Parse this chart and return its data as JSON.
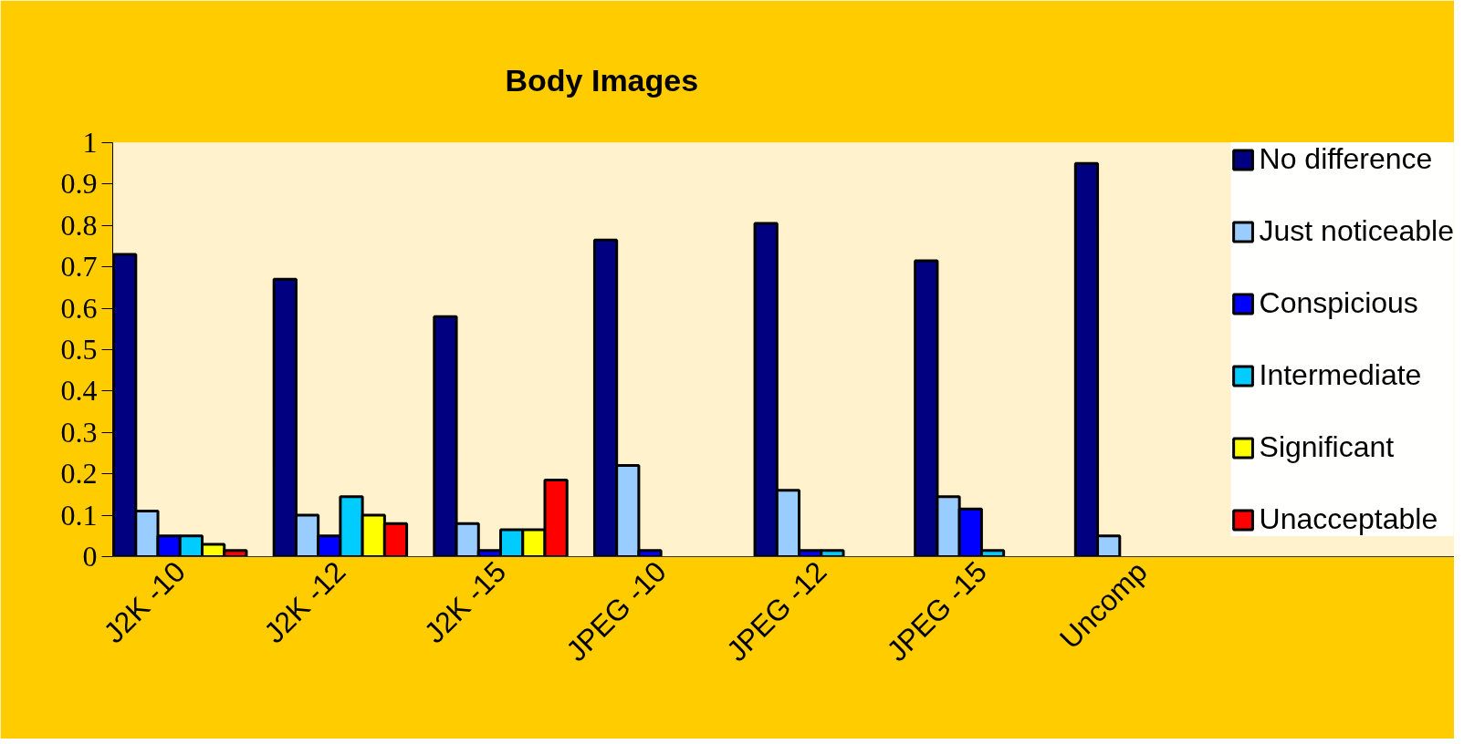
{
  "chart_data": {
    "type": "bar",
    "title": "Body Images",
    "categories": [
      "J2K -10",
      "J2K -12",
      "J2K -15",
      "JPEG -10",
      "JPEG -12",
      "JPEG -15",
      "Uncomp"
    ],
    "series": [
      {
        "name": "No difference",
        "color": "#000080",
        "values": [
          0.73,
          0.67,
          0.58,
          0.765,
          0.805,
          0.715,
          0.95
        ]
      },
      {
        "name": "Just noticeable",
        "color": "#99ccff",
        "values": [
          0.11,
          0.1,
          0.08,
          0.22,
          0.16,
          0.145,
          0.05
        ]
      },
      {
        "name": "Conspicious",
        "color": "#0000ff",
        "values": [
          0.05,
          0.05,
          0.015,
          0.015,
          0.015,
          0.115,
          null
        ]
      },
      {
        "name": "Intermediate",
        "color": "#00ccff",
        "values": [
          0.05,
          0.145,
          0.065,
          null,
          0.015,
          0.015,
          null
        ]
      },
      {
        "name": "Significant",
        "color": "#ffff00",
        "values": [
          0.03,
          0.1,
          0.065,
          null,
          null,
          null,
          null
        ]
      },
      {
        "name": "Unacceptable",
        "color": "#ff0000",
        "values": [
          0.015,
          0.08,
          0.185,
          null,
          null,
          null,
          null
        ]
      }
    ],
    "ylim": [
      0,
      1
    ],
    "yticks": [
      0,
      0.1,
      0.2,
      0.3,
      0.4,
      0.5,
      0.6,
      0.7,
      0.8,
      0.9,
      1
    ],
    "grid": false,
    "legend": "right"
  }
}
